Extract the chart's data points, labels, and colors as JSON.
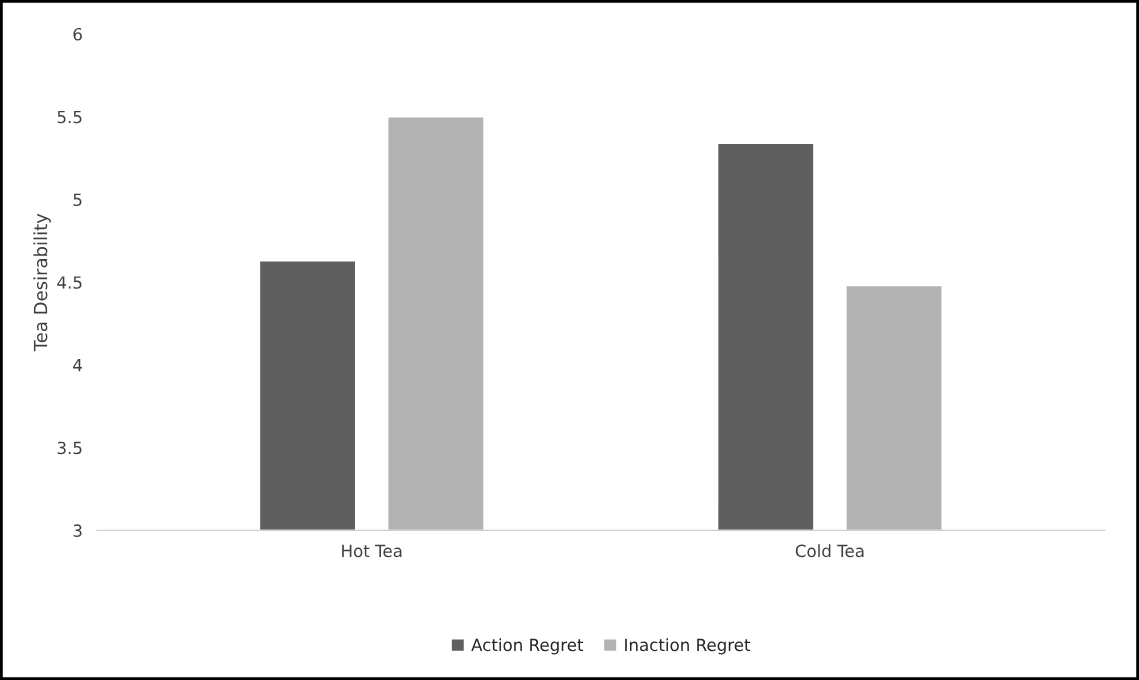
{
  "chart_data": {
    "type": "bar",
    "ylabel": "Tea Desirability",
    "categories": [
      "Hot Tea",
      "Cold Tea"
    ],
    "series": [
      {
        "name": "Action Regret",
        "color": "#5f5f5f",
        "values": [
          4.63,
          5.34
        ]
      },
      {
        "name": "Inaction Regret",
        "color": "#b2b2b2",
        "values": [
          5.5,
          4.48
        ]
      }
    ],
    "ylim": [
      3,
      6
    ],
    "yticks": [
      3,
      3.5,
      4,
      4.5,
      5,
      5.5,
      6
    ],
    "grid": false,
    "legend": "bottom"
  }
}
